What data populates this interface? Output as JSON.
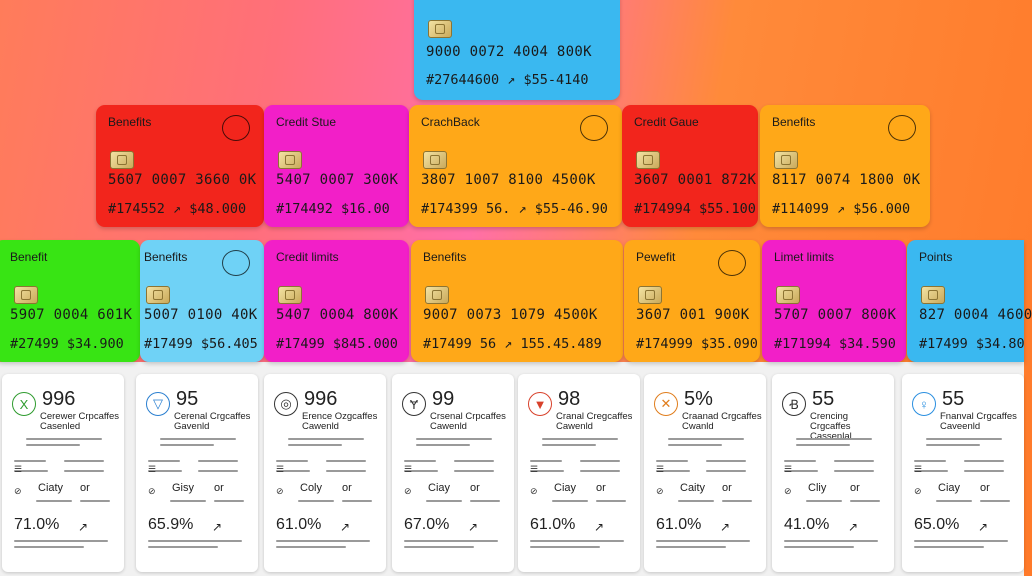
{
  "colors": {
    "blue": "#3ab8f0",
    "red": "#f2251c",
    "magenta": "#f21fc8",
    "orange": "#ffa818",
    "green": "#38e414",
    "lightblue": "#6fd2f6"
  },
  "top_card": {
    "number": "9000 0072 4004 800K",
    "meta": "#27644600  ↗  $55-4140"
  },
  "cards_row1": [
    {
      "name": "Benefits",
      "number": "5607 0007 3660 0K",
      "meta": "#174552  ↗  $48.000"
    },
    {
      "name": "Credit Stue",
      "number": "5407 0007 300K",
      "meta": "#174492  $16.00"
    },
    {
      "name": "CrachBack",
      "number": "3807 1007 8100 4500K",
      "meta": "#174399  56.  ↗  $55-46.90"
    },
    {
      "name": "Credit Gaue",
      "number": "3607 0001 872K",
      "meta": "#174994  $55.100"
    },
    {
      "name": "Benefits",
      "number": "8117 0074 1800 0K",
      "meta": "#114099  ↗  $56.000"
    }
  ],
  "cards_row2": [
    {
      "name": "Benefit",
      "number": "5907 0004 601K",
      "meta": "#27499  $34.900"
    },
    {
      "name": "Benefits",
      "number": "5007 0100 40K",
      "meta": "#17499  $56.405"
    },
    {
      "name": "Credit limits",
      "number": "5407 0004 800K",
      "meta": "#17499  $845.000"
    },
    {
      "name": "Benefits",
      "number": "9007 0073 1079 4500K",
      "meta": "#17499  56  ↗  155.45.489"
    },
    {
      "name": "Pewefit",
      "number": "3607 001 900K",
      "meta": "#174999  $35.090"
    },
    {
      "name": "Limet limits",
      "number": "5707 0007 800K",
      "meta": "#171994  $34.590"
    },
    {
      "name": "Points",
      "number": "827 0004 4600",
      "meta": "#17499  $34.80"
    }
  ],
  "stats": [
    {
      "icon": "X",
      "score": "996",
      "title": "Cerewer Crpcaffes Casenled",
      "city": "Ciaty",
      "cityv": "or",
      "pct": "71.0%"
    },
    {
      "icon": "▽",
      "score": "95",
      "title": "Cerenal Crgcaffes Gavenld",
      "city": "Gisy",
      "cityv": "or",
      "pct": "65.9%"
    },
    {
      "icon": "◎",
      "score": "996",
      "title": "Erence Ozgcaffes Cawenld",
      "city": "Coly",
      "cityv": "or",
      "pct": "61.0%"
    },
    {
      "icon": "Ɏ",
      "score": "99",
      "title": "Crsenal Crpcaffes Cawenld",
      "city": "Ciay",
      "cityv": "or",
      "pct": "67.0%"
    },
    {
      "icon": "▼",
      "score": "98",
      "title": "Cranal Cregcaffes Cawenld",
      "city": "Ciay",
      "cityv": "or",
      "pct": "61.0%"
    },
    {
      "icon": "✕",
      "score": "5%",
      "title": "Craanad Crgcaffes Cwanld",
      "city": "Caity",
      "cityv": "or",
      "pct": "61.0%"
    },
    {
      "icon": "Ꞗ",
      "score": "55",
      "title": "Crencing Crgcaffes Cassenlal",
      "city": "Cliy",
      "cityv": "or",
      "pct": "41.0%"
    },
    {
      "icon": "♀",
      "score": "55",
      "title": "Fnanval Crgcaffes Caveenld",
      "city": "Ciay",
      "cityv": "or",
      "pct": "65.0%"
    }
  ]
}
